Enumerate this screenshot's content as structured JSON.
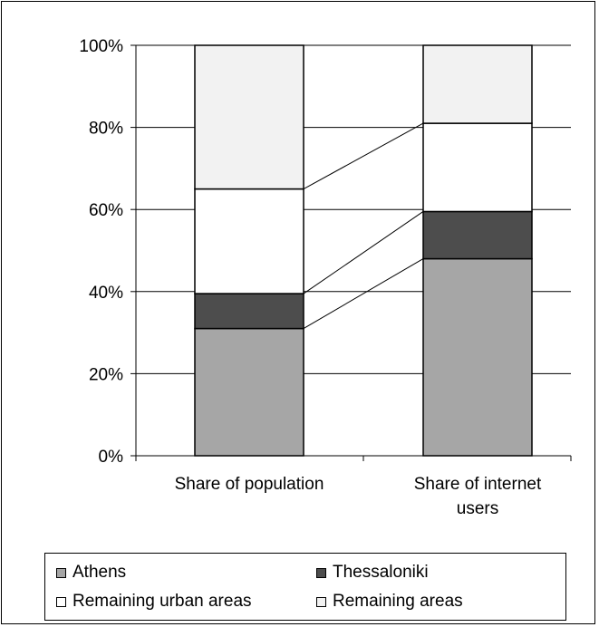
{
  "chart_data": {
    "type": "bar",
    "stacked": true,
    "percent_axis": true,
    "categories": [
      "Share of population",
      "Share of internet users"
    ],
    "series": [
      {
        "name": "Athens",
        "values": [
          31,
          48
        ],
        "color": "#a6a6a6"
      },
      {
        "name": "Thessaloniki",
        "values": [
          8.5,
          11.5
        ],
        "color": "#4d4d4d"
      },
      {
        "name": "Remaining urban areas",
        "values": [
          25.5,
          21.5
        ],
        "color": "#ffffff"
      },
      {
        "name": "Remaining areas",
        "values": [
          35,
          19
        ],
        "color": "#f2f2f2"
      }
    ],
    "ylim": [
      0,
      100
    ],
    "yticks": [
      "0%",
      "20%",
      "40%",
      "60%",
      "80%",
      "100%"
    ],
    "grid": true,
    "connector_lines": true,
    "legend": "bottom",
    "title": "",
    "xlabel": "",
    "ylabel": ""
  }
}
